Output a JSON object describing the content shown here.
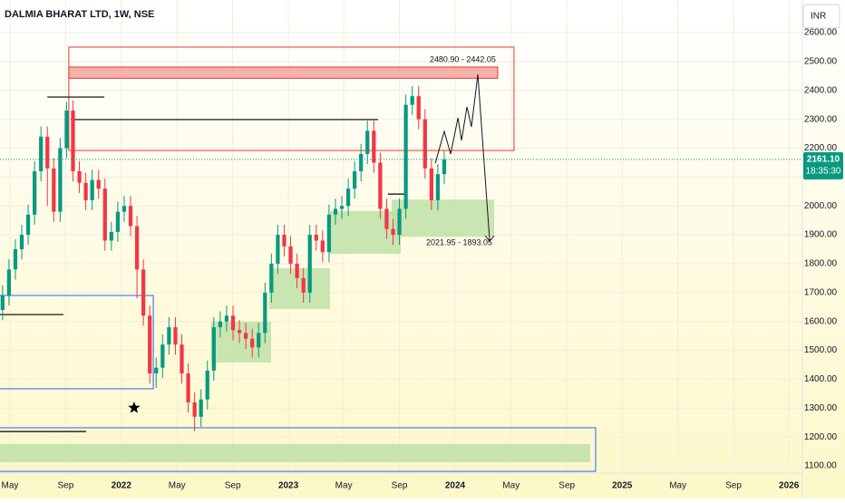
{
  "chart_data": {
    "type": "candlestick",
    "title": "DALMIA BHARAT LTD, 1W, NSE",
    "currency": "INR",
    "xlim": [
      14.2,
      264.9
    ],
    "ylim": [
      1075,
      2713
    ],
    "xticks": [
      {
        "value": 17.3,
        "label": "May"
      },
      {
        "value": 34.7,
        "label": "Sep"
      },
      {
        "value": 52.1,
        "label": "2022"
      },
      {
        "value": 69.5,
        "label": "May"
      },
      {
        "value": 86.9,
        "label": "Sep"
      },
      {
        "value": 104.3,
        "label": "2023"
      },
      {
        "value": 121.6,
        "label": "May"
      },
      {
        "value": 139.0,
        "label": "Sep"
      },
      {
        "value": 156.4,
        "label": "2024"
      },
      {
        "value": 173.9,
        "label": "May"
      },
      {
        "value": 191.3,
        "label": "Sep"
      },
      {
        "value": 208.6,
        "label": "2025"
      },
      {
        "value": 226.0,
        "label": "May"
      },
      {
        "value": 243.4,
        "label": "Sep"
      },
      {
        "value": 260.7,
        "label": "2026"
      }
    ],
    "yticks": [
      {
        "value": 1100,
        "label": "1100.00"
      },
      {
        "value": 1200,
        "label": "1200.00"
      },
      {
        "value": 1300,
        "label": "1300.00"
      },
      {
        "value": 1400,
        "label": "1400.00"
      },
      {
        "value": 1500,
        "label": "1500.00"
      },
      {
        "value": 1600,
        "label": "1600.00"
      },
      {
        "value": 1700,
        "label": "1700.00"
      },
      {
        "value": 1800,
        "label": "1800.00"
      },
      {
        "value": 1900,
        "label": "1900.00"
      },
      {
        "value": 2000,
        "label": "2000.00"
      },
      {
        "value": 2100,
        "label": "2100.00"
      },
      {
        "value": 2200,
        "label": "2200.00"
      },
      {
        "value": 2300,
        "label": "2300.00"
      },
      {
        "value": 2400,
        "label": "2400.00"
      },
      {
        "value": 2500,
        "label": "2500.00"
      },
      {
        "value": 2600,
        "label": "2600.00"
      }
    ],
    "grid": true,
    "up_color": "#089981",
    "down_color": "#f23645",
    "x": [
      15,
      17,
      19,
      21,
      23,
      25,
      27,
      29,
      31,
      33,
      35,
      37,
      39,
      41,
      43,
      45,
      47,
      49,
      51,
      53,
      55,
      57,
      59,
      61,
      63,
      65,
      67,
      69,
      71,
      73,
      75,
      77,
      79,
      81,
      83,
      85,
      87,
      89,
      91,
      93,
      95,
      97,
      99,
      101,
      103,
      105,
      107,
      109,
      111,
      113,
      115,
      117,
      119,
      121,
      123,
      125,
      127,
      129,
      131,
      133,
      135,
      137,
      139,
      141,
      143,
      145,
      147,
      149,
      151,
      153
    ],
    "open": [
      1640,
      1690,
      1780,
      1850,
      1900,
      1970,
      2120,
      2240,
      2130,
      1980,
      2200,
      2330,
      2120,
      2080,
      2020,
      2090,
      2060,
      1880,
      1910,
      1980,
      2000,
      1930,
      1780,
      1620,
      1420,
      1440,
      1520,
      1580,
      1520,
      1420,
      1320,
      1270,
      1330,
      1430,
      1580,
      1600,
      1620,
      1570,
      1560,
      1540,
      1510,
      1560,
      1700,
      1800,
      1900,
      1860,
      1800,
      1750,
      1700,
      1900,
      1880,
      1840,
      1970,
      1990,
      2000,
      2060,
      2120,
      2180,
      2260,
      2150,
      1990,
      1920,
      1900,
      1990,
      2350,
      2380,
      2300,
      2130,
      2020,
      2110
    ],
    "high": [
      1725,
      1815,
      1885,
      1935,
      2005,
      2155,
      2275,
      2275,
      2165,
      2235,
      2360,
      2365,
      2155,
      2115,
      2125,
      2125,
      2095,
      1945,
      2015,
      2035,
      2035,
      1965,
      1815,
      1655,
      1475,
      1555,
      1615,
      1615,
      1555,
      1455,
      1355,
      1365,
      1465,
      1615,
      1635,
      1655,
      1655,
      1605,
      1595,
      1575,
      1595,
      1735,
      1835,
      1935,
      1935,
      1895,
      1835,
      1785,
      1935,
      1935,
      1915,
      2005,
      2025,
      2035,
      2095,
      2155,
      2215,
      2295,
      2295,
      2185,
      2025,
      1955,
      2025,
      2385,
      2415,
      2415,
      2335,
      2165,
      2145,
      2190
    ],
    "low": [
      1605,
      1655,
      1745,
      1815,
      1865,
      1935,
      2085,
      2000,
      1945,
      1945,
      2165,
      2085,
      2045,
      1985,
      1985,
      2025,
      1845,
      1845,
      1875,
      1945,
      1895,
      1680,
      1585,
      1385,
      1370,
      1405,
      1485,
      1485,
      1385,
      1285,
      1220,
      1235,
      1295,
      1395,
      1545,
      1565,
      1535,
      1525,
      1505,
      1475,
      1475,
      1525,
      1665,
      1765,
      1825,
      1765,
      1715,
      1665,
      1665,
      1845,
      1805,
      1805,
      1935,
      1955,
      1965,
      2025,
      2085,
      2145,
      2115,
      1955,
      1885,
      1865,
      1865,
      1955,
      2315,
      2265,
      2095,
      1985,
      1985,
      2075
    ],
    "close": [
      1690,
      1780,
      1850,
      1900,
      1970,
      2120,
      2240,
      2130,
      1980,
      2200,
      2330,
      2120,
      2080,
      2020,
      2090,
      2060,
      1880,
      1910,
      1980,
      2000,
      1930,
      1780,
      1620,
      1420,
      1440,
      1520,
      1580,
      1520,
      1420,
      1320,
      1270,
      1330,
      1430,
      1580,
      1600,
      1620,
      1570,
      1560,
      1540,
      1510,
      1560,
      1700,
      1800,
      1900,
      1860,
      1800,
      1750,
      1700,
      1900,
      1880,
      1840,
      1970,
      1990,
      2000,
      2060,
      2120,
      2180,
      2260,
      2150,
      1990,
      1920,
      1900,
      1990,
      2350,
      2380,
      2300,
      2130,
      2020,
      2110,
      2161.1
    ],
    "last_price": {
      "value": 2161.1,
      "label": "2161.10"
    },
    "countdown": "18:35:30",
    "zones": [
      {
        "x": [
          35.7,
          174.8
        ],
        "y": [
          2192,
          2550
        ],
        "fill": "none",
        "stroke": "#e53935"
      },
      {
        "x": [
          35.7,
          169.7
        ],
        "y": [
          2442.05,
          2480.9
        ],
        "fill": "#f5a39a",
        "stroke": "#e53935",
        "label": "2480.90 - 2442.05",
        "label_position": "above"
      },
      {
        "x": [
          136.6,
          168.6
        ],
        "y": [
          1893.05,
          2021.95
        ],
        "fill": "#bfe0a8",
        "stroke": "none",
        "label": "2021.95 - 1893.05",
        "label_position": "below"
      },
      {
        "x": [
          117.3,
          139.4
        ],
        "y": [
          1834,
          1982
        ],
        "fill": "#bfe0a8",
        "stroke": "none"
      },
      {
        "x": [
          98.3,
          117.3
        ],
        "y": [
          1643,
          1784
        ],
        "fill": "#bfe0a8",
        "stroke": "none"
      },
      {
        "x": [
          80.2,
          98.9
        ],
        "y": [
          1458,
          1599
        ],
        "fill": "#bfe0a8",
        "stroke": "none"
      },
      {
        "x": [
          10,
          62.1
        ],
        "y": [
          1367,
          1690
        ],
        "fill": "none",
        "stroke": "#2962ff"
      },
      {
        "x": [
          10,
          198.6
        ],
        "y": [
          1113,
          1176
        ],
        "fill": "#bfe0a8",
        "stroke": "none"
      },
      {
        "x": [
          10,
          200.3
        ],
        "y": [
          1081,
          1232
        ],
        "fill": "none",
        "stroke": "#2962ff"
      }
    ],
    "levels": [
      {
        "x": [
          29,
          46.8
        ],
        "y": 2377
      },
      {
        "x": [
          36.3,
          132.3
        ],
        "y": 2299
      },
      {
        "x": [
          10,
          34
        ],
        "y": 1624
      },
      {
        "x": [
          10,
          41.1
        ],
        "y": 1219
      },
      {
        "x": [
          135.4,
          140.5
        ],
        "y": 2041
      }
    ],
    "projection": {
      "x": [
        150.2,
        153.0,
        155.0,
        157.3,
        158.4,
        160.1,
        161.5,
        163.5,
        167.2
      ],
      "y": [
        2148,
        2258,
        2180,
        2305,
        2227,
        2343,
        2274,
        2456,
        1878
      ]
    },
    "star": {
      "x": 56.1,
      "y": 1301
    }
  }
}
